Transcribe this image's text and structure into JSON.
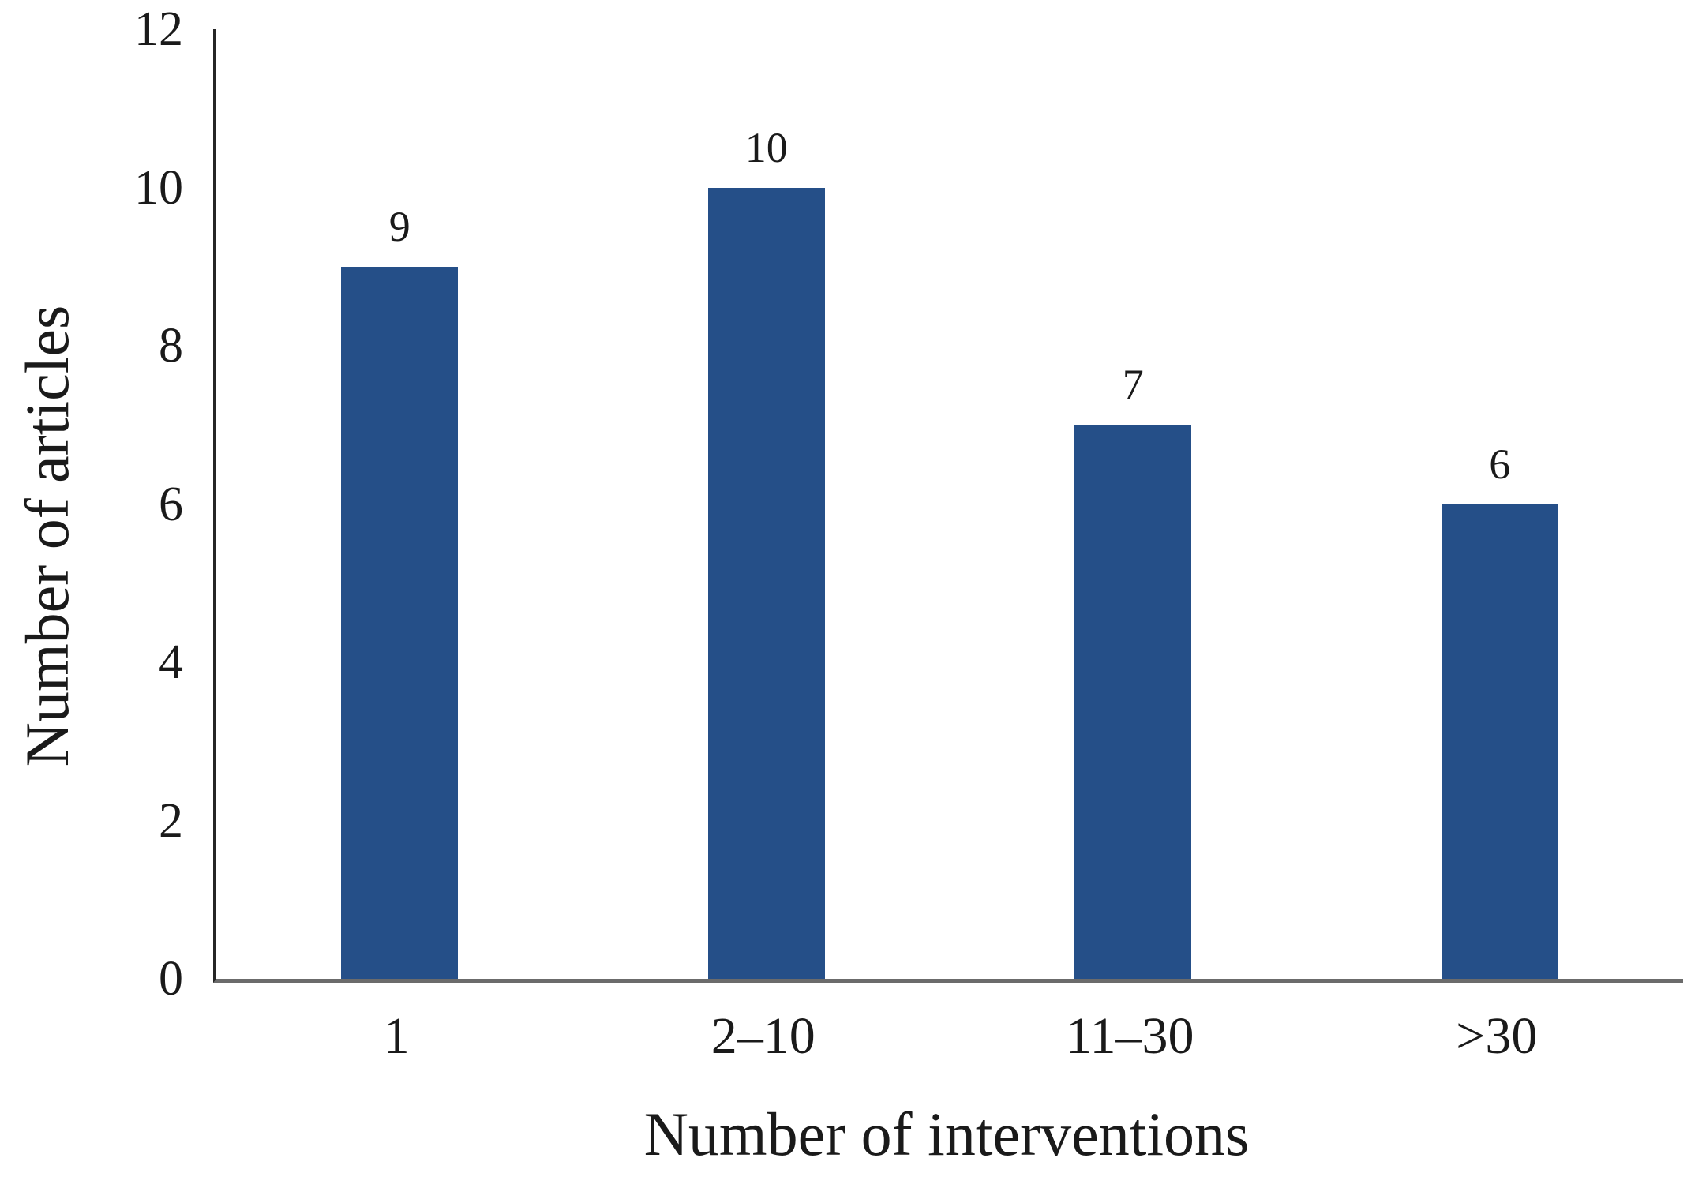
{
  "chart_data": {
    "type": "bar",
    "categories": [
      "1",
      "2–10",
      "11–30",
      ">30"
    ],
    "values": [
      9,
      10,
      7,
      6
    ],
    "data_labels": [
      "9",
      "10",
      "7",
      "6"
    ],
    "title": "",
    "xlabel": "Number of interventions",
    "ylabel": "Number of articles",
    "ylim": [
      0,
      12
    ],
    "yticks": [
      0,
      2,
      4,
      6,
      8,
      10,
      12
    ],
    "grid": false,
    "legend_position": "none",
    "bar_color": "#254f88",
    "y_axis_line_color": "#262626",
    "x_axis_line_color": "#6b6b6b",
    "text_color": "#1a1a1a",
    "background_color": "#ffffff"
  }
}
